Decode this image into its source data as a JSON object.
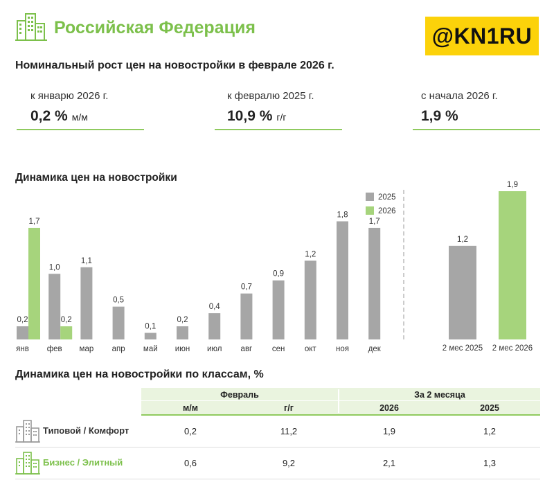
{
  "header": {
    "title": "Российская Федерация",
    "brand": "@KN1RU"
  },
  "subtitle": "Номинальный рост цен на новостройки в феврале 2026 г.",
  "kpis": [
    {
      "label": "к январю 2026 г.",
      "value": "0,2 %",
      "unit": "м/м"
    },
    {
      "label": "к февралю 2025 г.",
      "value": "10,9 %",
      "unit": "г/г"
    },
    {
      "label": "с начала 2026 г.",
      "value": "1,9 %",
      "unit": ""
    }
  ],
  "colors": {
    "green": "#a6d47c",
    "gray": "#a6a6a6",
    "accent": "#7cc04b",
    "line": "#8fca5e"
  },
  "chart_data": [
    {
      "type": "bar",
      "title": "Динамика цен на новостройки",
      "categories": [
        "янв",
        "фев",
        "мар",
        "апр",
        "май",
        "июн",
        "июл",
        "авг",
        "сен",
        "окт",
        "ноя",
        "дек"
      ],
      "series": [
        {
          "name": "2025",
          "values": [
            0.2,
            1.0,
            1.1,
            0.5,
            0.1,
            0.2,
            0.4,
            0.7,
            0.9,
            1.2,
            1.8,
            1.7
          ],
          "labels": [
            "0,2",
            "1,0",
            "1,1",
            "0,5",
            "0,1",
            "0,2",
            "0,4",
            "0,7",
            "0,9",
            "1,2",
            "1,8",
            "1,7"
          ]
        },
        {
          "name": "2026",
          "values": [
            1.7,
            0.2,
            null,
            null,
            null,
            null,
            null,
            null,
            null,
            null,
            null,
            null
          ],
          "labels": [
            "1,7",
            "0,2",
            "",
            "",
            "",
            "",
            "",
            "",
            "",
            "",
            "",
            ""
          ]
        }
      ],
      "ylim": [
        0,
        1.9
      ],
      "legend": "top-right"
    },
    {
      "type": "bar",
      "categories": [
        "2 мес 2025",
        "2 мес 2026"
      ],
      "values": [
        1.2,
        1.9
      ],
      "labels": [
        "1,2",
        "1,9"
      ],
      "ylim": [
        0,
        1.9
      ]
    }
  ],
  "classes": {
    "title": "Динамика цен на новостройки по классам, %",
    "group_headers": [
      "Февраль",
      "За 2 месяца"
    ],
    "sub_headers": [
      "м/м",
      "г/г",
      "2026",
      "2025"
    ],
    "rows": [
      {
        "name": "Типовой / Комфорт",
        "values": [
          "0,2",
          "11,2",
          "1,9",
          "1,2"
        ]
      },
      {
        "name": "Бизнес / Элитный",
        "values": [
          "0,6",
          "9,2",
          "2,1",
          "1,3"
        ]
      }
    ]
  }
}
